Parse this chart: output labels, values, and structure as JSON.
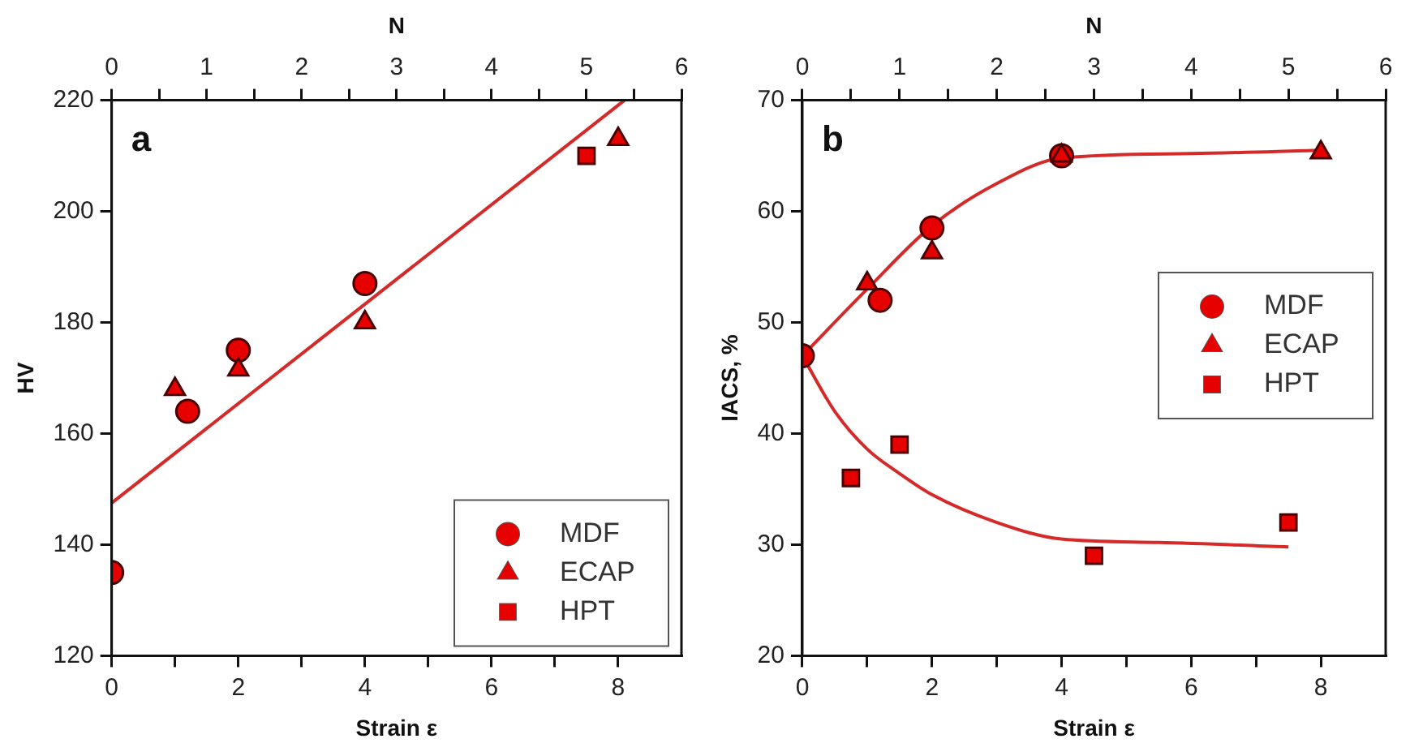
{
  "chart_data": [
    {
      "type": "scatter",
      "xlabel": "Strain ε",
      "x2label": "N",
      "ylabel": "HV",
      "annotations": [
        "a"
      ],
      "xlim": [
        0,
        9
      ],
      "xticks": [
        0,
        {
          "value": 1,
          "label": null
        },
        2,
        {
          "value": 3,
          "label": null
        },
        4,
        {
          "value": 5,
          "label": null
        },
        6,
        {
          "value": 7,
          "label": null
        },
        8
      ],
      "x2lim": [
        0,
        6
      ],
      "x2ticks": [
        0,
        {
          "value": 0.5,
          "label": null
        },
        1,
        {
          "value": 1.5,
          "label": null
        },
        2,
        {
          "value": 2.5,
          "label": null
        },
        3,
        {
          "value": 3.5,
          "label": null
        },
        4,
        {
          "value": 4.5,
          "label": null
        },
        5,
        {
          "value": 5.5,
          "label": null
        },
        6
      ],
      "ylim": [
        120,
        220
      ],
      "yticks": [
        120,
        140,
        160,
        180,
        200,
        220
      ],
      "grid": false,
      "legend": "bottom right",
      "series": [
        {
          "name": "MDF",
          "color": "#e60000",
          "marker": "circle",
          "x": [
            0,
            1.2,
            2,
            4
          ],
          "values": [
            135,
            164,
            175,
            187
          ]
        },
        {
          "name": "ECAP",
          "color": "#e60000",
          "marker": "triangle",
          "x": [
            1,
            2,
            4,
            8
          ],
          "values": [
            168,
            171.5,
            180,
            213
          ]
        },
        {
          "name": "HPT",
          "color": "#e60000",
          "marker": "square",
          "x": [
            7.5
          ],
          "values": [
            210
          ]
        },
        {
          "type": "line",
          "color": "#d42a2a",
          "marker": "none",
          "x": [
            0,
            8.1
          ],
          "values": [
            147.5,
            220
          ]
        }
      ]
    },
    {
      "type": "scatter",
      "xlabel": "Strain ε",
      "x2label": "N",
      "ylabel": "IACS, %",
      "annotations": [
        "b"
      ],
      "xlim": [
        0,
        9
      ],
      "xticks": [
        0,
        {
          "value": 1,
          "label": null
        },
        2,
        {
          "value": 3,
          "label": null
        },
        4,
        {
          "value": 5,
          "label": null
        },
        6,
        {
          "value": 7,
          "label": null
        },
        8
      ],
      "x2lim": [
        0,
        6
      ],
      "x2ticks": [
        0,
        {
          "value": 0.5,
          "label": null
        },
        1,
        {
          "value": 1.5,
          "label": null
        },
        2,
        {
          "value": 2.5,
          "label": null
        },
        3,
        {
          "value": 3.5,
          "label": null
        },
        4,
        {
          "value": 4.5,
          "label": null
        },
        5,
        {
          "value": 5.5,
          "label": null
        },
        6
      ],
      "ylim": [
        20,
        70
      ],
      "yticks": [
        20,
        30,
        40,
        50,
        60,
        70
      ],
      "grid": false,
      "legend": "right",
      "series": [
        {
          "name": "MDF",
          "color": "#e60000",
          "marker": "circle",
          "x": [
            0,
            1.2,
            2,
            4
          ],
          "values": [
            47,
            52,
            58.5,
            65
          ]
        },
        {
          "name": "ECAP",
          "color": "#e60000",
          "marker": "triangle",
          "x": [
            1,
            2,
            4,
            8
          ],
          "values": [
            53.5,
            56.3,
            65,
            65.3
          ]
        },
        {
          "name": "HPT",
          "color": "#e60000",
          "marker": "square",
          "x": [
            0.75,
            1.5,
            4.5,
            7.5
          ],
          "values": [
            36,
            39,
            29,
            32
          ]
        },
        {
          "type": "line",
          "color": "#d42a2a",
          "marker": "none",
          "x": [
            0,
            1,
            2,
            3,
            4,
            6,
            8
          ],
          "values": [
            47,
            53,
            58.7,
            62.5,
            64.8,
            65.2,
            65.5
          ]
        },
        {
          "type": "line",
          "color": "#d42a2a",
          "marker": "none",
          "x": [
            0,
            0.5,
            1,
            1.5,
            2,
            3,
            4,
            5.5,
            7.5
          ],
          "values": [
            47,
            42,
            38.6,
            36.4,
            34.5,
            32,
            30.5,
            30.2,
            29.8
          ]
        }
      ]
    }
  ]
}
